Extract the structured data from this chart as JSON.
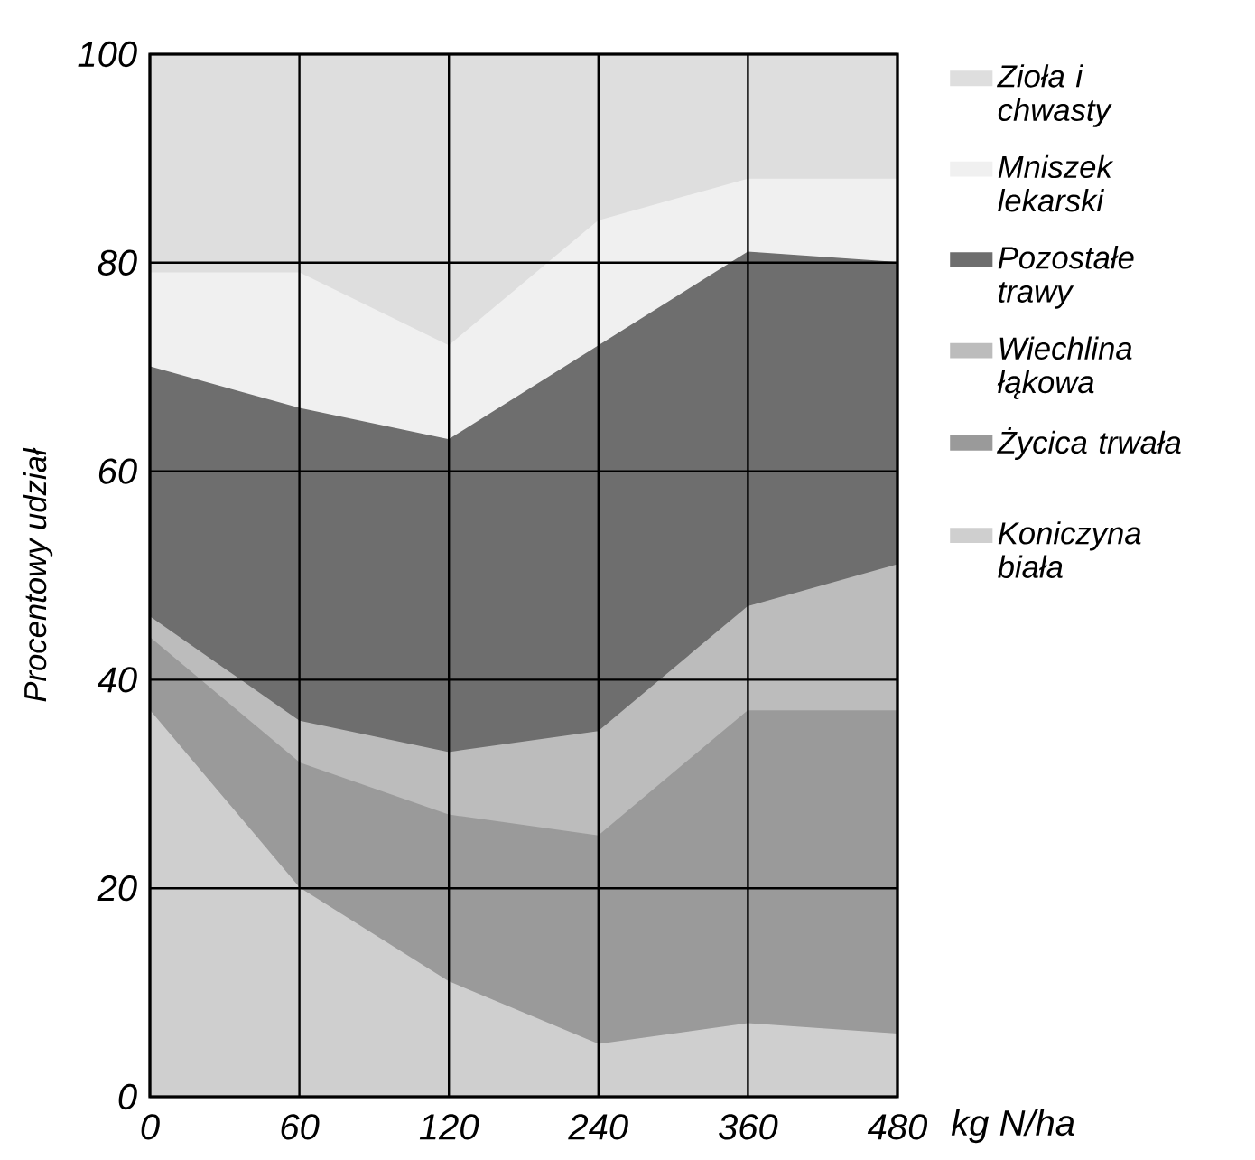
{
  "chart_data": {
    "type": "area",
    "stacked": true,
    "categories": [
      "0",
      "60",
      "120",
      "240",
      "360",
      "480"
    ],
    "xlabel": "kg N/ha",
    "ylabel": "Procentowy udział",
    "ylim": [
      0,
      100
    ],
    "yticks": [
      0,
      20,
      40,
      60,
      80,
      100
    ],
    "grid": true,
    "legend": "right",
    "series": [
      {
        "name": "Koniczyna biała",
        "color": "#cfcfcf",
        "values": [
          37,
          20,
          11,
          5,
          7,
          6
        ]
      },
      {
        "name": "Życica trwała",
        "color": "#9a9a9a",
        "values": [
          7,
          12,
          16,
          20,
          30,
          31
        ]
      },
      {
        "name": "Wiechlina łąkowa",
        "color": "#bcbcbc",
        "values": [
          2,
          4,
          6,
          10,
          10,
          14
        ]
      },
      {
        "name": "Pozostałe trawy",
        "color": "#6e6e6e",
        "values": [
          24,
          30,
          30,
          37,
          34,
          29
        ]
      },
      {
        "name": "Mniszek lekarski",
        "color": "#f0f0f0",
        "values": [
          9,
          13,
          9,
          12,
          7,
          8
        ]
      },
      {
        "name": "Zioła i chwasty",
        "color": "#dedede",
        "values": [
          21,
          21,
          28,
          16,
          12,
          12
        ]
      }
    ]
  }
}
